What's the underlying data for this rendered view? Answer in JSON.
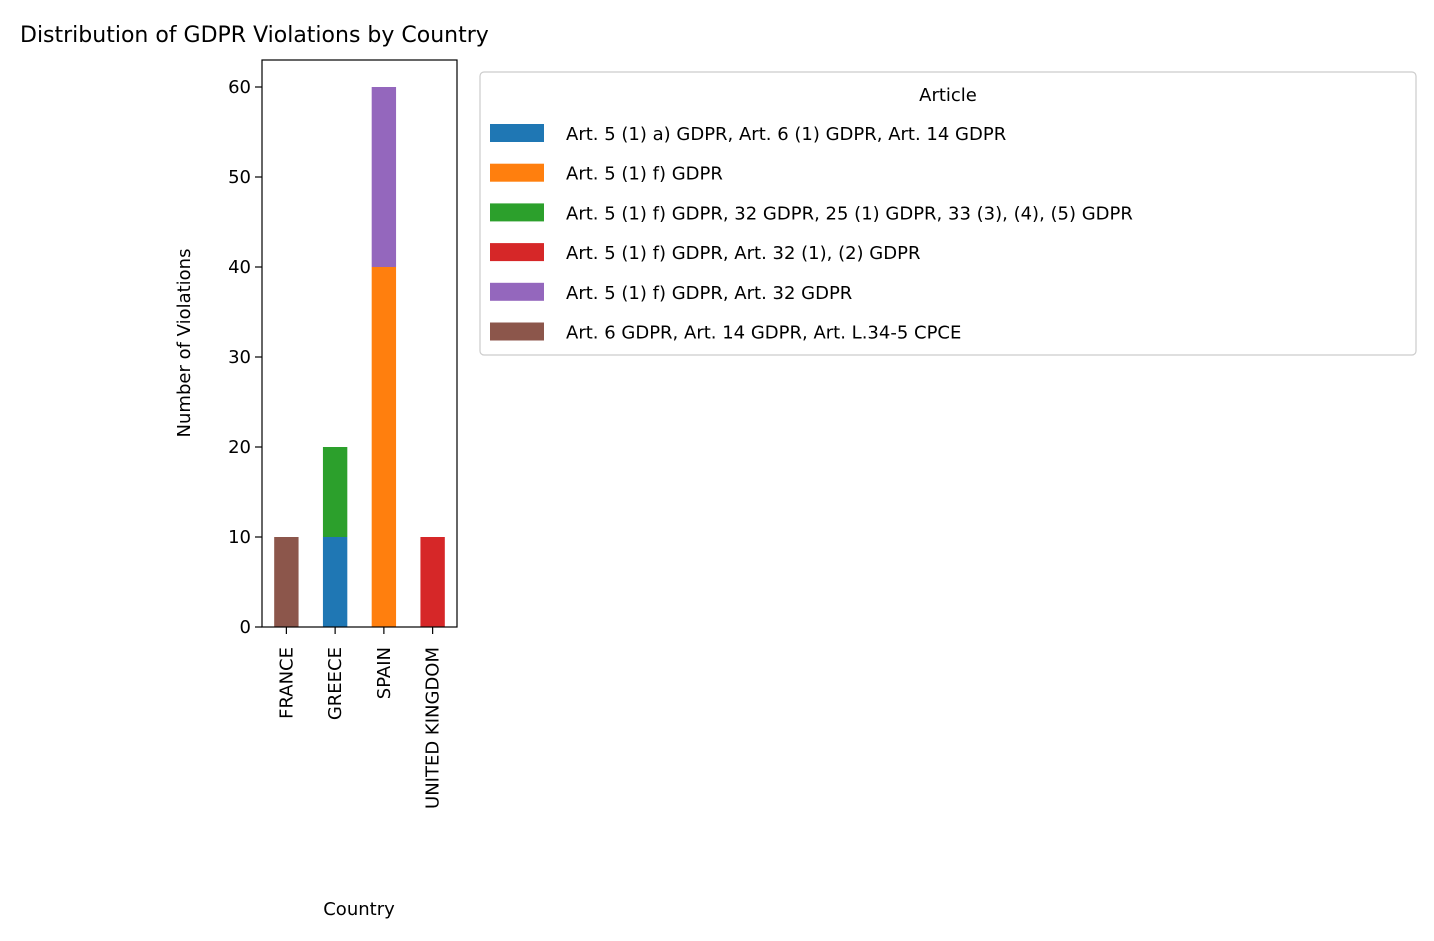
{
  "chart_data": {
    "type": "bar",
    "stacked": true,
    "title": "Distribution of GDPR Violations by Country",
    "xlabel": "Country",
    "ylabel": "Number of Violations",
    "categories": [
      "FRANCE",
      "GREECE",
      "SPAIN",
      "UNITED KINGDOM"
    ],
    "ylim": [
      0,
      63
    ],
    "yticks": [
      0,
      10,
      20,
      30,
      40,
      50,
      60
    ],
    "legend_title": "Article",
    "legend_position": "outside-right-top",
    "grid": false,
    "series": [
      {
        "name": "Art. 5 (1) a) GDPR, Art. 6 (1) GDPR, Art. 14 GDPR",
        "color": "#1f77b4",
        "values": [
          0,
          10,
          0,
          0
        ]
      },
      {
        "name": "Art. 5 (1) f) GDPR",
        "color": "#ff7f0e",
        "values": [
          0,
          0,
          40,
          0
        ]
      },
      {
        "name": "Art. 5 (1) f) GDPR, 32 GDPR, 25 (1) GDPR, 33 (3), (4), (5) GDPR",
        "color": "#2ca02c",
        "values": [
          0,
          10,
          0,
          0
        ]
      },
      {
        "name": "Art. 5 (1) f) GDPR, Art. 32 (1), (2) GDPR",
        "color": "#d62728",
        "values": [
          0,
          0,
          0,
          10
        ]
      },
      {
        "name": "Art. 5 (1) f) GDPR, Art. 32 GDPR",
        "color": "#9467bd",
        "values": [
          0,
          0,
          20,
          0
        ]
      },
      {
        "name": "Art. 6 GDPR, Art. 14 GDPR, Art. L.34-5 CPCE",
        "color": "#8c564b",
        "values": [
          10,
          0,
          0,
          0
        ]
      }
    ]
  }
}
